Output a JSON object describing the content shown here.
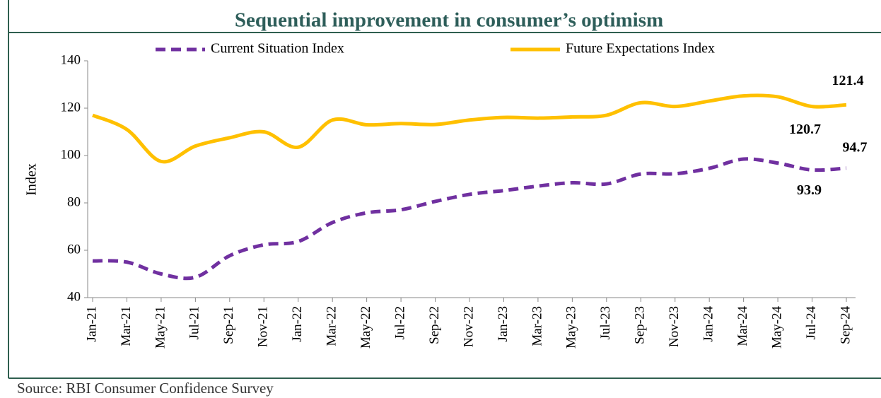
{
  "chart_data": {
    "type": "line",
    "title": "Sequential improvement in consumer’s optimism",
    "y_label": "Index",
    "source": "Source: RBI Consumer Confidence Survey",
    "categories": [
      "Jan-21",
      "Mar-21",
      "May-21",
      "Jul-21",
      "Sep-21",
      "Nov-21",
      "Jan-22",
      "Mar-22",
      "May-22",
      "Jul-22",
      "Sep-22",
      "Nov-22",
      "Jan-23",
      "Mar-23",
      "May-23",
      "Jul-23",
      "Sep-23",
      "Nov-23",
      "Jan-24",
      "Mar-24",
      "May-24",
      "Jul-24",
      "Sep-24"
    ],
    "series": [
      {
        "name": "Current Situation Index",
        "color": "#7030a0",
        "dashed": true,
        "values": [
          55.5,
          55,
          50,
          48.6,
          57.7,
          62.3,
          63.7,
          71.7,
          75.8,
          77.1,
          80.6,
          83.6,
          85.2,
          87.1,
          88.5,
          88,
          92.2,
          92.3,
          94.6,
          98.5,
          96.8,
          93.9,
          94.7
        ]
      },
      {
        "name": "Future Expectations Index",
        "color": "#ffc000",
        "dashed": false,
        "values": [
          117,
          111,
          97.5,
          104,
          107.5,
          110,
          103.5,
          115,
          113,
          113.5,
          113.1,
          115,
          116.1,
          115.8,
          116.3,
          117,
          122.3,
          120.7,
          123,
          125.2,
          124.8,
          120.7,
          121.4
        ]
      }
    ],
    "ylim": [
      40,
      140
    ],
    "yticks": [
      40,
      60,
      80,
      100,
      120,
      140
    ],
    "grid": false,
    "legend": "top"
  }
}
